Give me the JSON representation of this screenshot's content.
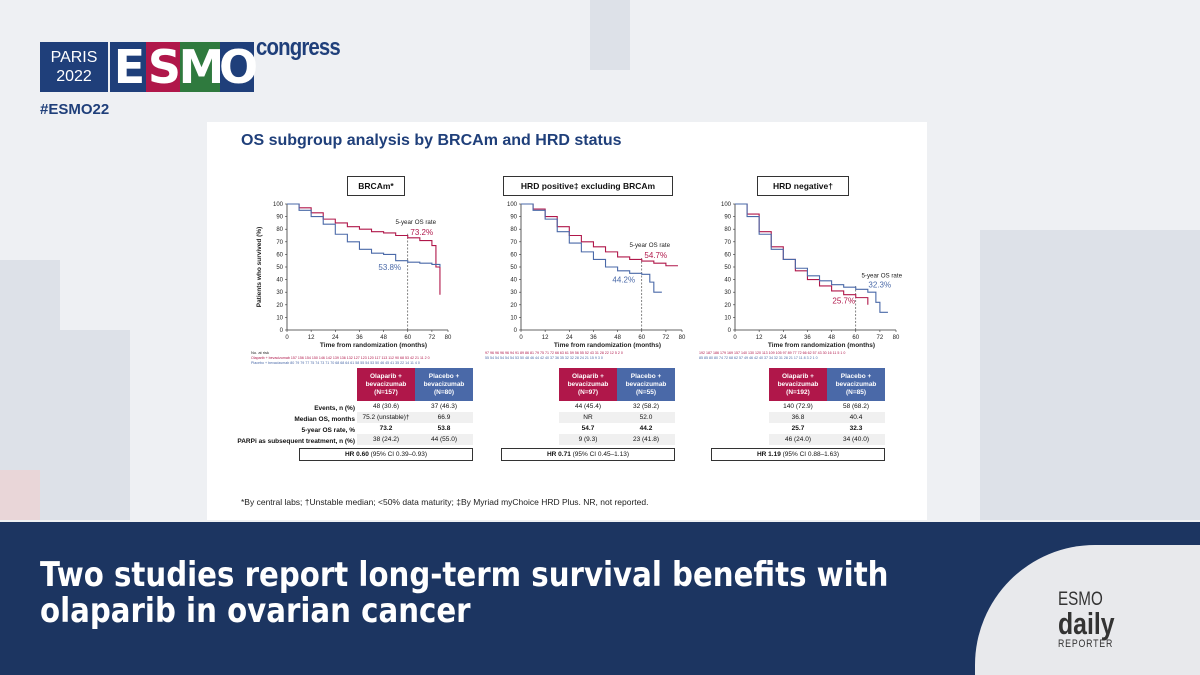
{
  "brand": {
    "city": "PARIS",
    "year": "2022",
    "esmo_letters": [
      "E",
      "S",
      "M",
      "O"
    ],
    "esmo_colors": [
      "#1f3f7a",
      "#b0174a",
      "#2f7a3e",
      "#1f3f7a"
    ],
    "congress": "congress",
    "hashtag": "#ESMO22"
  },
  "slide": {
    "title": "OS subgroup analysis by BRCAm and HRD status",
    "footnote": "*By central labs; †Unstable median; <50% data maturity; ‡By Myriad myChoice HRD Plus. NR, not reported.",
    "row_labels": [
      "Events, n (%)",
      "Median OS, months",
      "5-year OS rate, %",
      "PARPi as subsequent treatment, n (%)"
    ]
  },
  "chart_data": [
    {
      "type": "line",
      "panel_label": "BRCAm*",
      "ylabel": "Patients who survived (%)",
      "xlabel": "Time from randomization (months)",
      "xlim": [
        0,
        80
      ],
      "ylim": [
        0,
        100
      ],
      "xticks": [
        0,
        12,
        24,
        36,
        48,
        60,
        72,
        80
      ],
      "yticks": [
        0,
        10,
        20,
        30,
        40,
        50,
        60,
        70,
        80,
        90,
        100
      ],
      "annotation": "5-year OS rate",
      "labels": {
        "red": "73.2%",
        "blue": "53.8%"
      },
      "series": [
        {
          "color": "#b0174a",
          "x": [
            0,
            6,
            12,
            18,
            24,
            30,
            36,
            42,
            48,
            54,
            60,
            66,
            72,
            74,
            76
          ],
          "y": [
            100,
            97,
            93,
            88,
            85,
            82,
            80,
            78,
            77,
            75,
            73.2,
            71,
            67,
            50,
            28
          ]
        },
        {
          "color": "#4a69a8",
          "x": [
            0,
            6,
            12,
            18,
            24,
            30,
            36,
            42,
            48,
            54,
            60,
            66,
            72,
            76
          ],
          "y": [
            100,
            95,
            90,
            84,
            76,
            70,
            64,
            61,
            60,
            55,
            53.8,
            53,
            52,
            50
          ]
        }
      ],
      "at_risk_label": "No. at risk",
      "at_risk": [
        {
          "name": "Olaparib + bevacizumab",
          "values": "157 156 154 150 146 142 139 136 132 127 123 120 117 113 112 90 68 53 42 21 11 2 0"
        },
        {
          "name": "Placebo + bevacizumab",
          "values": "80 79 79 77 75 74 73 71 70 68 68 64 61 58 55 54 53 50 46 45 41 35 22 14 11 4 0"
        }
      ],
      "table": {
        "headers": [
          "Olaparib + bevacizumab (N=157)",
          "Placebo + bevacizumab (N=80)"
        ],
        "rows": [
          [
            "48 (30.6)",
            "37 (46.3)"
          ],
          [
            "75.2 (unstable)†",
            "66.9"
          ],
          [
            "73.2",
            "53.8"
          ],
          [
            "38 (24.2)",
            "44 (55.0)"
          ]
        ],
        "hr_bold": "HR 0.60",
        "hr_rest": "(95% CI 0.39–0.93)"
      }
    },
    {
      "type": "line",
      "panel_label": "HRD positive‡ excluding BRCAm",
      "xlim": [
        0,
        80
      ],
      "ylim": [
        0,
        100
      ],
      "xticks": [
        0,
        12,
        24,
        36,
        48,
        60,
        72,
        80
      ],
      "yticks": [
        0,
        10,
        20,
        30,
        40,
        50,
        60,
        70,
        80,
        90,
        100
      ],
      "annotation": "5-year OS rate",
      "labels": {
        "red": "54.7%",
        "blue": "44.2%"
      },
      "xlabel": "Time from randomization (months)",
      "series": [
        {
          "color": "#b0174a",
          "x": [
            0,
            6,
            12,
            18,
            24,
            30,
            36,
            42,
            48,
            54,
            60,
            66,
            72,
            78
          ],
          "y": [
            100,
            96,
            90,
            82,
            75,
            70,
            66,
            62,
            58,
            56,
            54.7,
            53,
            51,
            51
          ]
        },
        {
          "color": "#4a69a8",
          "x": [
            0,
            6,
            12,
            18,
            24,
            30,
            36,
            42,
            48,
            54,
            60,
            64,
            66,
            70
          ],
          "y": [
            100,
            95,
            88,
            78,
            69,
            62,
            56,
            50,
            47,
            45,
            44.2,
            38,
            30,
            30
          ]
        }
      ],
      "at_risk": [
        {
          "values": "97 96 96 96 96 94 91 89 86 81 79 75 71 72 66 63 61 59 56 55 52 43 31 28 22 12 5 2 0"
        },
        {
          "values": "55 54 54 54 54 54 53 50 48 46 44 42 40 37 36 35 32 32 28 24 21 15 9 3 0"
        }
      ],
      "table": {
        "headers": [
          "Olaparib + bevacizumab (N=97)",
          "Placebo + bevacizumab (N=55)"
        ],
        "rows": [
          [
            "44 (45.4)",
            "32 (58.2)"
          ],
          [
            "NR",
            "52.0"
          ],
          [
            "54.7",
            "44.2"
          ],
          [
            "9 (9.3)",
            "23 (41.8)"
          ]
        ],
        "hr_bold": "HR 0.71",
        "hr_rest": "(95% CI 0.45–1.13)"
      }
    },
    {
      "type": "line",
      "panel_label": "HRD negative†",
      "xlim": [
        0,
        80
      ],
      "ylim": [
        0,
        100
      ],
      "xticks": [
        0,
        12,
        24,
        36,
        48,
        60,
        72,
        80
      ],
      "yticks": [
        0,
        10,
        20,
        30,
        40,
        50,
        60,
        70,
        80,
        90,
        100
      ],
      "annotation": "5-year OS rate",
      "labels": {
        "red": "25.7%",
        "blue": "32.3%"
      },
      "xlabel": "Time from randomization (months)",
      "series": [
        {
          "color": "#b0174a",
          "x": [
            0,
            6,
            12,
            18,
            24,
            30,
            36,
            42,
            48,
            54,
            60,
            66
          ],
          "y": [
            100,
            92,
            78,
            66,
            56,
            47,
            40,
            35,
            31,
            28,
            25.7,
            20
          ]
        },
        {
          "color": "#4a69a8",
          "x": [
            0,
            6,
            12,
            18,
            24,
            30,
            36,
            42,
            48,
            54,
            60,
            66,
            70,
            72,
            76
          ],
          "y": [
            100,
            90,
            76,
            64,
            56,
            49,
            43,
            39,
            36,
            34,
            32.3,
            30,
            22,
            14,
            14
          ]
        }
      ],
      "at_risk": [
        {
          "values": "192 187 186 179 169 157 140 130 120 113 109 105 97 89 77 72 66 62 57 43 30 16 11 5 1 0"
        },
        {
          "values": "85 85 80 80 74 72 68 62 57 49 46 42 40 37 34 32 31 28 21 17 11 8 3 2 1 0"
        }
      ],
      "table": {
        "headers": [
          "Olaparib + bevacizumab (N=192)",
          "Placebo + bevacizumab (N=85)"
        ],
        "rows": [
          [
            "140 (72.9)",
            "58 (68.2)"
          ],
          [
            "36.8",
            "40.4"
          ],
          [
            "25.7",
            "32.3"
          ],
          [
            "46 (24.0)",
            "34 (40.0)"
          ]
        ],
        "hr_bold": "HR 1.19",
        "hr_rest": "(95% CI 0.88–1.63)"
      }
    }
  ],
  "headline": {
    "line1": "Two studies report long-term survival benefits with",
    "line2": "olaparib in ovarian cancer"
  },
  "daily_logo": {
    "top": "ESMO",
    "middle": "daily",
    "bottom": "REPORTER"
  }
}
